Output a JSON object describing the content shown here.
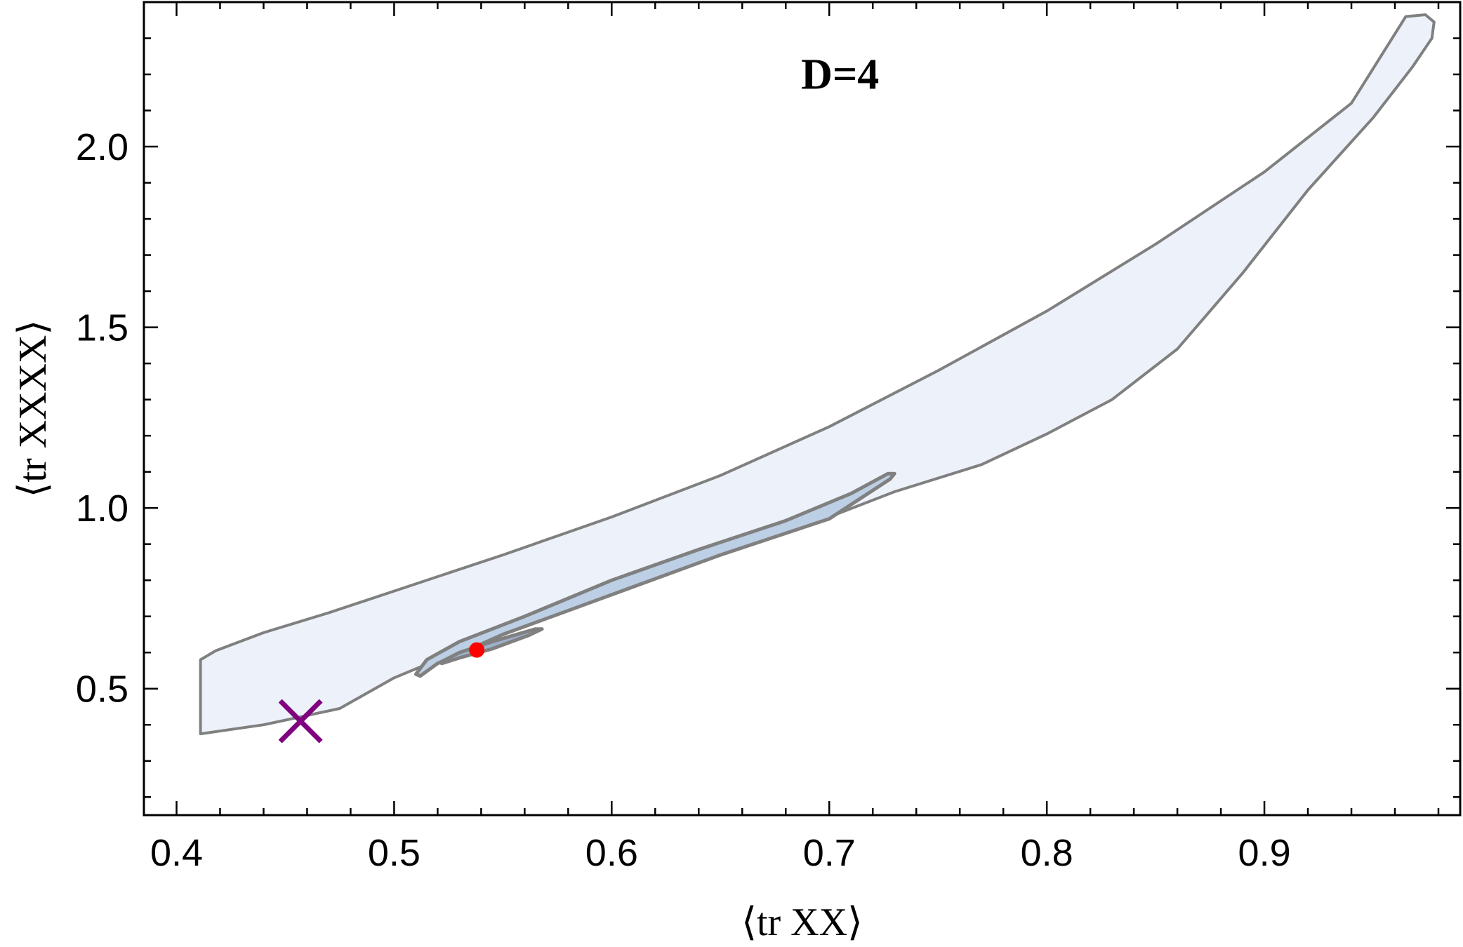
{
  "chart_data": {
    "type": "region",
    "title": "D=4",
    "xlabel": "⟨tr XX⟩",
    "ylabel": "⟨tr XXXX⟩",
    "xlim": [
      0.385,
      0.99
    ],
    "ylim": [
      0.15,
      2.4
    ],
    "x_ticks": [
      0.4,
      0.5,
      0.6,
      0.7,
      0.8,
      0.9
    ],
    "x_tick_labels": [
      "0.4",
      "0.5",
      "0.6",
      "0.7",
      "0.8",
      "0.9"
    ],
    "y_ticks": [
      0.5,
      1.0,
      1.5,
      2.0
    ],
    "y_tick_labels": [
      "0.5",
      "1.0",
      "1.5",
      "2.0"
    ],
    "x_minor_step": 0.02,
    "y_minor_step": 0.1,
    "grid": false,
    "colors": {
      "outer_fill": "#edf2fa",
      "inner_fill": "#bccfe5",
      "core_fill": "#9cb1cc",
      "outline": "#808080",
      "dot": "#ff0000",
      "cross": "#800080"
    },
    "regions": [
      {
        "role": "outer",
        "points": [
          [
            0.411,
            0.58
          ],
          [
            0.418,
            0.605
          ],
          [
            0.44,
            0.655
          ],
          [
            0.47,
            0.71
          ],
          [
            0.5,
            0.77
          ],
          [
            0.55,
            0.87
          ],
          [
            0.6,
            0.975
          ],
          [
            0.65,
            1.09
          ],
          [
            0.7,
            1.225
          ],
          [
            0.75,
            1.38
          ],
          [
            0.8,
            1.545
          ],
          [
            0.85,
            1.73
          ],
          [
            0.9,
            1.93
          ],
          [
            0.94,
            2.12
          ],
          [
            0.965,
            2.36
          ],
          [
            0.974,
            2.365
          ],
          [
            0.978,
            2.345
          ],
          [
            0.977,
            2.3
          ],
          [
            0.968,
            2.22
          ],
          [
            0.95,
            2.08
          ],
          [
            0.92,
            1.88
          ],
          [
            0.89,
            1.65
          ],
          [
            0.86,
            1.44
          ],
          [
            0.83,
            1.3
          ],
          [
            0.8,
            1.205
          ],
          [
            0.77,
            1.12
          ],
          [
            0.73,
            1.045
          ],
          [
            0.7,
            0.975
          ],
          [
            0.65,
            0.87
          ],
          [
            0.6,
            0.76
          ],
          [
            0.55,
            0.655
          ],
          [
            0.5,
            0.53
          ],
          [
            0.475,
            0.445
          ],
          [
            0.44,
            0.4
          ],
          [
            0.411,
            0.375
          ]
        ]
      },
      {
        "role": "inner",
        "points": [
          [
            0.51,
            0.54
          ],
          [
            0.515,
            0.58
          ],
          [
            0.53,
            0.63
          ],
          [
            0.56,
            0.7
          ],
          [
            0.6,
            0.8
          ],
          [
            0.64,
            0.885
          ],
          [
            0.68,
            0.965
          ],
          [
            0.71,
            1.04
          ],
          [
            0.727,
            1.095
          ],
          [
            0.73,
            1.095
          ],
          [
            0.728,
            1.08
          ],
          [
            0.7,
            0.97
          ],
          [
            0.65,
            0.87
          ],
          [
            0.6,
            0.76
          ],
          [
            0.55,
            0.65
          ],
          [
            0.52,
            0.57
          ],
          [
            0.512,
            0.535
          ]
        ]
      },
      {
        "role": "core",
        "points": [
          [
            0.521,
            0.572
          ],
          [
            0.53,
            0.6
          ],
          [
            0.545,
            0.63
          ],
          [
            0.565,
            0.665
          ],
          [
            0.568,
            0.665
          ],
          [
            0.562,
            0.648
          ],
          [
            0.545,
            0.61
          ],
          [
            0.53,
            0.585
          ],
          [
            0.522,
            0.57
          ]
        ]
      }
    ],
    "points": [
      {
        "marker": "dot",
        "x": 0.538,
        "y": 0.607
      },
      {
        "marker": "cross",
        "x": 0.457,
        "y": 0.41
      }
    ]
  }
}
